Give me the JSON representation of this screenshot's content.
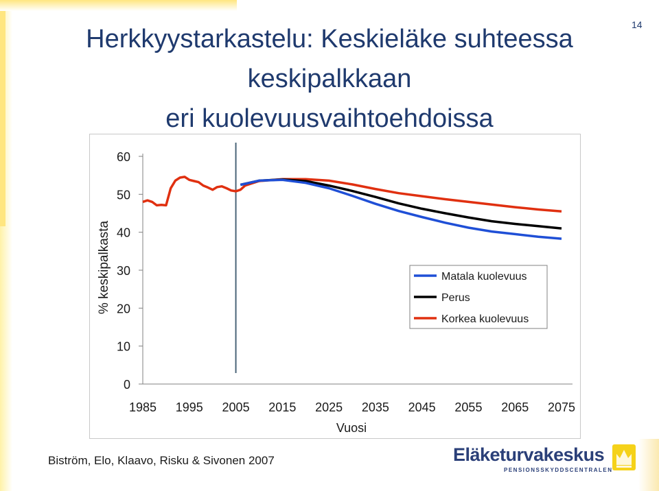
{
  "slide": {
    "title_lines": [
      "Herkkyystarkastelu: Keskieläke suhteessa",
      "keskipalkkaan",
      "eri kuolevuusvaihtoehdoissa"
    ],
    "page_number": "14",
    "footer": "Biström, Elo, Klaavo, Risku & Sivonen 2007",
    "logo_name": "Eläketurvakeskus",
    "logo_subtitle": "PENSIONSSKYDDSCENTRALEN",
    "logo_emblem_icon": "ekt-crown-emblem-icon"
  },
  "colors": {
    "title": "#1f3a6e",
    "matala": "#1f4fd6",
    "perus": "#000000",
    "korkea": "#e03010"
  },
  "chart_data": {
    "type": "line",
    "xlabel": "Vuosi",
    "ylabel": "% keskipalkasta",
    "xlim": [
      1985,
      2075
    ],
    "ylim": [
      0,
      60
    ],
    "x_ticks": [
      "1985",
      "1995",
      "2005",
      "2015",
      "2025",
      "2035",
      "2045",
      "2055",
      "2065",
      "2075"
    ],
    "y_ticks": [
      "0",
      "10",
      "20",
      "30",
      "40",
      "50",
      "60"
    ],
    "grid": false,
    "legend": "right-middle",
    "vertical_marker_year": 2005,
    "series": [
      {
        "name": "Matala kuolevuus",
        "x": [
          2006,
          2010,
          2015,
          2020,
          2025,
          2030,
          2035,
          2040,
          2045,
          2050,
          2055,
          2060,
          2065,
          2070,
          2075
        ],
        "y": [
          52.5,
          53.6,
          53.8,
          53.0,
          51.6,
          49.6,
          47.5,
          45.6,
          44.0,
          42.5,
          41.2,
          40.2,
          39.5,
          38.8,
          38.3
        ]
      },
      {
        "name": "Perus",
        "x": [
          2006,
          2010,
          2015,
          2020,
          2025,
          2030,
          2035,
          2040,
          2045,
          2050,
          2055,
          2060,
          2065,
          2070,
          2075
        ],
        "y": [
          52.5,
          53.6,
          53.9,
          53.5,
          52.3,
          50.9,
          49.3,
          47.6,
          46.2,
          45.0,
          43.9,
          42.9,
          42.2,
          41.6,
          41.0
        ]
      },
      {
        "name": "Korkea kuolevuus",
        "x": [
          1985,
          1986,
          1987,
          1988,
          1989,
          1990,
          1991,
          1992,
          1993,
          1994,
          1995,
          1996,
          1997,
          1998,
          1999,
          2000,
          2001,
          2002,
          2003,
          2004,
          2005,
          2006,
          2007,
          2010,
          2015,
          2020,
          2025,
          2030,
          2035,
          2040,
          2045,
          2050,
          2055,
          2060,
          2065,
          2070,
          2075
        ],
        "y": [
          48.0,
          48.4,
          48.0,
          47.1,
          47.2,
          47.1,
          51.6,
          53.6,
          54.4,
          54.6,
          53.8,
          53.5,
          53.2,
          52.3,
          51.8,
          51.2,
          51.9,
          52.1,
          51.6,
          51.0,
          50.8,
          51.2,
          52.3,
          53.5,
          54.0,
          54.0,
          53.6,
          52.6,
          51.4,
          50.3,
          49.5,
          48.7,
          48.0,
          47.3,
          46.6,
          46.0,
          45.5
        ]
      }
    ]
  }
}
